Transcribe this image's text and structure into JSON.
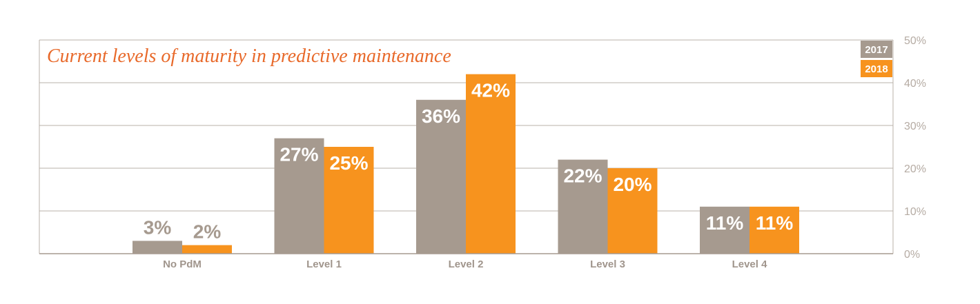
{
  "chart_data": {
    "type": "bar",
    "title": "Current levels of maturity in predictive maintenance",
    "categories": [
      "No PdM",
      "Level 1",
      "Level 2",
      "Level 3",
      "Level 4"
    ],
    "series": [
      {
        "name": "2017",
        "values": [
          3,
          27,
          36,
          22,
          11
        ],
        "labels": [
          "3%",
          "27%",
          "36%",
          "22%",
          "11%"
        ],
        "color": "#a69a8f"
      },
      {
        "name": "2018",
        "values": [
          2,
          25,
          42,
          20,
          11
        ],
        "labels": [
          "2%",
          "25%",
          "42%",
          "20%",
          "11%"
        ],
        "color": "#f7931e"
      }
    ],
    "ylim": [
      0,
      50
    ],
    "yticks": [
      0,
      10,
      20,
      30,
      40,
      50
    ],
    "ytick_labels": [
      "0%",
      "10%",
      "20%",
      "30%",
      "40%",
      "50%"
    ],
    "y_axis_side": "right",
    "grid": true,
    "legend_position": "top-right",
    "title_color": "#e8692a",
    "label_color_outside": "#a69a8f",
    "label_color_inside": "#ffffff"
  }
}
